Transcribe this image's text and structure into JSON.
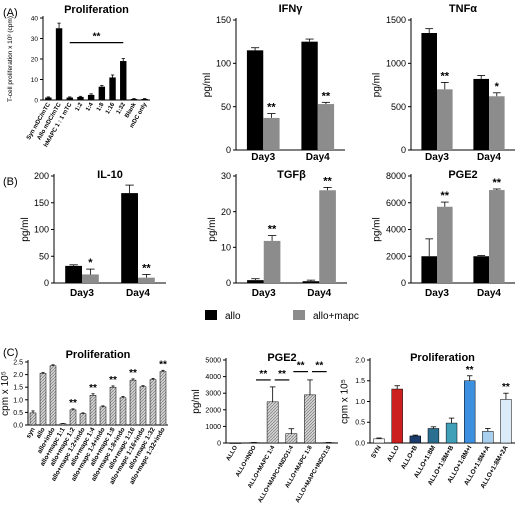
{
  "panel_labels": [
    "(A)",
    "(B)",
    "(C)"
  ],
  "legend": {
    "items": [
      {
        "label": "allo",
        "color": "#000000"
      },
      {
        "label": "allo+mapc",
        "color": "#8c8c8c"
      }
    ]
  },
  "chart_data": [
    {
      "id": "a1",
      "type": "bar",
      "title": "Proliferation",
      "ylabel": "T-cell proliferation x 10³ (cpm)",
      "xlabel": "",
      "ylim": [
        0,
        40
      ],
      "yticks": [
        "0",
        "10",
        "20",
        "30",
        "40"
      ],
      "categories": [
        "Syn mDC/mTC",
        "Allo mDC/mTC",
        "hMAPC 1 : 1 mTC",
        "1:2",
        "1:4",
        "1:8",
        "1:16",
        "1:32",
        "Blank",
        "mDC only"
      ],
      "values": [
        1.2,
        35,
        1.2,
        1.5,
        2.5,
        6.5,
        11,
        19,
        0.5,
        0.5
      ],
      "errors": [
        0.3,
        2.5,
        0.3,
        0.3,
        0.5,
        0.6,
        1.2,
        1.2,
        0.2,
        0.2
      ],
      "color": "#000000",
      "bracket": {
        "from": 2,
        "to": 7,
        "y": 28,
        "label": "**"
      }
    },
    {
      "id": "a2",
      "type": "bar",
      "title": "IFNγ",
      "ylabel": "pg/ml",
      "xlabel": "",
      "ylim": [
        0,
        150
      ],
      "yticks": [
        "0",
        "50",
        "100",
        "150"
      ],
      "categories": [
        "Day3",
        "Day4"
      ],
      "series": [
        {
          "name": "allo",
          "values": [
            115,
            125
          ],
          "errors": [
            3,
            3
          ]
        },
        {
          "name": "allo+mapc",
          "values": [
            37,
            53
          ],
          "errors": [
            5,
            2
          ],
          "annotations": [
            "**",
            "**"
          ]
        }
      ]
    },
    {
      "id": "a3",
      "type": "bar",
      "title": "TNFα",
      "ylabel": "pg/ml",
      "xlabel": "",
      "ylim": [
        0,
        1500
      ],
      "yticks": [
        "0",
        "500",
        "1000",
        "1500"
      ],
      "categories": [
        "Day3",
        "Day4"
      ],
      "series": [
        {
          "name": "allo",
          "values": [
            1350,
            820
          ],
          "errors": [
            50,
            40
          ]
        },
        {
          "name": "allo+mapc",
          "values": [
            700,
            620
          ],
          "errors": [
            80,
            40
          ],
          "annotations": [
            "**",
            "*"
          ]
        }
      ]
    },
    {
      "id": "b1",
      "type": "bar",
      "title": "IL-10",
      "ylabel": "pg/ml",
      "xlabel": "",
      "ylim": [
        0,
        200
      ],
      "yticks": [
        "0",
        "50",
        "100",
        "150",
        "200"
      ],
      "categories": [
        "Day3",
        "Day4"
      ],
      "series": [
        {
          "name": "allo",
          "values": [
            32,
            168
          ],
          "errors": [
            2,
            15
          ]
        },
        {
          "name": "allo+mapc",
          "values": [
            16,
            10
          ],
          "errors": [
            10,
            6
          ],
          "annotations": [
            "*",
            "**"
          ]
        }
      ]
    },
    {
      "id": "b2",
      "type": "bar",
      "title": "TGFβ",
      "ylabel": "pg/ml",
      "xlabel": "",
      "ylim": [
        0,
        30
      ],
      "yticks": [
        "0",
        "10",
        "20",
        "30"
      ],
      "categories": [
        "Day3",
        "Day4"
      ],
      "series": [
        {
          "name": "allo",
          "values": [
            0.8,
            0.5
          ],
          "errors": [
            0.4,
            0.3
          ]
        },
        {
          "name": "allo+mapc",
          "values": [
            11.8,
            26
          ],
          "errors": [
            1.5,
            0.8
          ],
          "annotations": [
            "**",
            "**"
          ]
        }
      ]
    },
    {
      "id": "b3",
      "type": "bar",
      "title": "PGE2",
      "ylabel": "pg/ml",
      "xlabel": "",
      "ylim": [
        0,
        8000
      ],
      "yticks": [
        "0",
        "2000",
        "4000",
        "6000",
        "8000"
      ],
      "categories": [
        "Day3",
        "Day4"
      ],
      "series": [
        {
          "name": "allo",
          "values": [
            2000,
            2000
          ],
          "errors": [
            1300,
            50
          ]
        },
        {
          "name": "allo+mapc",
          "values": [
            5700,
            6950
          ],
          "errors": [
            350,
            80
          ],
          "annotations": [
            "**",
            "**"
          ]
        }
      ]
    },
    {
      "id": "c1",
      "type": "bar",
      "title": "Proliferation",
      "ylabel": "cpm x 10⁵",
      "xlabel": "",
      "ylim": [
        0,
        2.5
      ],
      "yticks": [
        "0.0",
        "0.5",
        "1.0",
        "1.5",
        "2.0",
        "2.5"
      ],
      "categories": [
        "syn",
        "allo",
        "allo+indo",
        "allo+mapc 1:1",
        "allo+mapc 1:2",
        "allo+mapc 1:2+indo",
        "allo+mapc 1:4",
        "allo+mapc 1:4+indo",
        "allo+mapc 1:8",
        "allo+mapc 1:8+indo",
        "allo+mapc 1:16",
        "allo+mapc 1:16+indo",
        "allo+mapc 1:32",
        "allo+mapc 1:32+indo"
      ],
      "values": [
        0.48,
        2.05,
        2.35,
        0.05,
        0.6,
        0.45,
        1.18,
        0.72,
        1.5,
        1.08,
        1.78,
        1.52,
        1.8,
        2.12
      ],
      "errors": [
        0.08,
        0.03,
        0.04,
        0.01,
        0.04,
        0.03,
        0.06,
        0.04,
        0.05,
        0.05,
        0.05,
        0.04,
        0.05,
        0.05
      ],
      "annotations": [
        "",
        "",
        "",
        "",
        "**",
        "",
        "**",
        "",
        "**",
        "",
        "**",
        "",
        "",
        "**"
      ],
      "color": "#c8c8c8"
    },
    {
      "id": "c2",
      "type": "bar",
      "title": "PGE2",
      "ylabel": "pg/ml",
      "xlabel": "",
      "ylim": [
        0,
        5000
      ],
      "yticks": [
        "0",
        "1000",
        "2000",
        "3000",
        "4000",
        "5000"
      ],
      "categories": [
        "ALLO",
        "ALLO+INDO",
        "ALLO+MAPC 1:4",
        "ALLO+MAPC+INDO1:4",
        "ALLO+MAPC 1:8",
        "ALLO+MAPC+INDO1:8"
      ],
      "values": [
        0,
        20,
        2480,
        560,
        2900,
        20
      ],
      "errors": [
        0,
        10,
        900,
        300,
        900,
        10
      ],
      "color": "#c8c8c8",
      "brackets": [
        {
          "from": 1,
          "to": 2,
          "y": 3800,
          "label": "**"
        },
        {
          "from": 2,
          "to": 3,
          "y": 3800,
          "label": "**"
        },
        {
          "from": 3,
          "to": 4,
          "y": 4300,
          "label": "**"
        },
        {
          "from": 4,
          "to": 5,
          "y": 4300,
          "label": "**"
        }
      ]
    },
    {
      "id": "c3",
      "type": "bar",
      "title": "Proliferation",
      "ylabel": "cpm x 10⁵",
      "xlabel": "",
      "ylim": [
        0,
        2.0
      ],
      "yticks": [
        "0.0",
        "0.5",
        "1.0",
        "1.5",
        "2.0"
      ],
      "categories": [
        "SYN",
        "ALLO",
        "ALLO+B",
        "ALLO+1:8M",
        "ALLO+1:8M+B",
        "ALLO+1:8M+I",
        "ALLO+1:8M+A",
        "ALLO+1:8M+2A"
      ],
      "values": [
        0.1,
        1.3,
        0.17,
        0.35,
        0.48,
        1.5,
        0.28,
        1.05
      ],
      "errors": [
        0.02,
        0.08,
        0.02,
        0.04,
        0.12,
        0.12,
        0.07,
        0.15
      ],
      "annotations": [
        "",
        "",
        "",
        "",
        "",
        "**",
        "",
        "**"
      ],
      "colors": [
        "#ffffff",
        "#cc1f1f",
        "#1a3b6b",
        "#2a6f8f",
        "#3fa0b8",
        "#3d8fe0",
        "#a8d0ee",
        "#dbecf8"
      ]
    }
  ]
}
